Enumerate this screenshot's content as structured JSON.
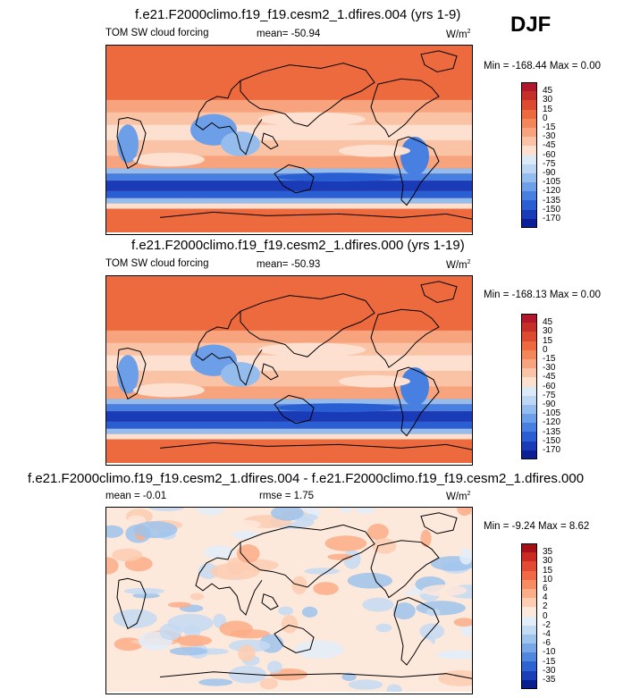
{
  "season": "DJF",
  "panels": [
    {
      "title": "f.e21.F2000climo.f19_f19.cesm2_1.dfires.004 (yrs 1-9)",
      "left_label": "TOM SW cloud forcing",
      "center_label": "mean= -50.94",
      "units": "W/m",
      "units_sup": "2",
      "minmax": "Min = -168.44 Max =  0.00",
      "style": "abs",
      "colorbar_levels": [
        "45",
        "30",
        "15",
        "0",
        "-15",
        "-30",
        "-45",
        "-60",
        "-75",
        "-90",
        "-105",
        "-120",
        "-135",
        "-150",
        "-170"
      ],
      "colorbar_colors": [
        "#b2182b",
        "#c62e28",
        "#dc4b2f",
        "#ec6a3e",
        "#f4875a",
        "#f7a47e",
        "#fac3a5",
        "#fde0cf",
        "#dce9f7",
        "#bcd6f3",
        "#94bdee",
        "#6c9fe8",
        "#4780e0",
        "#2a5fd3",
        "#1a3bb8",
        "#0b1f96"
      ]
    },
    {
      "title": "f.e21.F2000climo.f19_f19.cesm2_1.dfires.000 (yrs 1-19)",
      "left_label": "TOM SW cloud forcing",
      "center_label": "mean= -50.93",
      "units": "W/m",
      "units_sup": "2",
      "minmax": "Min = -168.13 Max =  0.00",
      "style": "abs",
      "colorbar_levels": [
        "45",
        "30",
        "15",
        "0",
        "-15",
        "-30",
        "-45",
        "-60",
        "-75",
        "-90",
        "-105",
        "-120",
        "-135",
        "-150",
        "-170"
      ],
      "colorbar_colors": [
        "#b2182b",
        "#c62e28",
        "#dc4b2f",
        "#ec6a3e",
        "#f4875a",
        "#f7a47e",
        "#fac3a5",
        "#fde0cf",
        "#dce9f7",
        "#bcd6f3",
        "#94bdee",
        "#6c9fe8",
        "#4780e0",
        "#2a5fd3",
        "#1a3bb8",
        "#0b1f96"
      ]
    },
    {
      "title": "f.e21.F2000climo.f19_f19.cesm2_1.dfires.004 - f.e21.F2000climo.f19_f19.cesm2_1.dfires.000",
      "left_label": "mean =  -0.01",
      "center_label": "rmse =  1.75",
      "units": "W/m",
      "units_sup": "2",
      "minmax": "Min = -9.24 Max =  8.62",
      "style": "diff",
      "colorbar_levels": [
        "35",
        "30",
        "15",
        "10",
        "6",
        "4",
        "2",
        "0",
        "-2",
        "-4",
        "-6",
        "-10",
        "-15",
        "-30",
        "-35"
      ],
      "colorbar_colors": [
        "#a50f15",
        "#cb2a22",
        "#e34a33",
        "#f16a46",
        "#f78c62",
        "#fbad87",
        "#fdcdb2",
        "#fde8dc",
        "#e3edf8",
        "#c4daf2",
        "#9ec3ec",
        "#77a7e6",
        "#5086dd",
        "#2f63d1",
        "#1a3fb8",
        "#0a1f8e"
      ]
    }
  ]
}
